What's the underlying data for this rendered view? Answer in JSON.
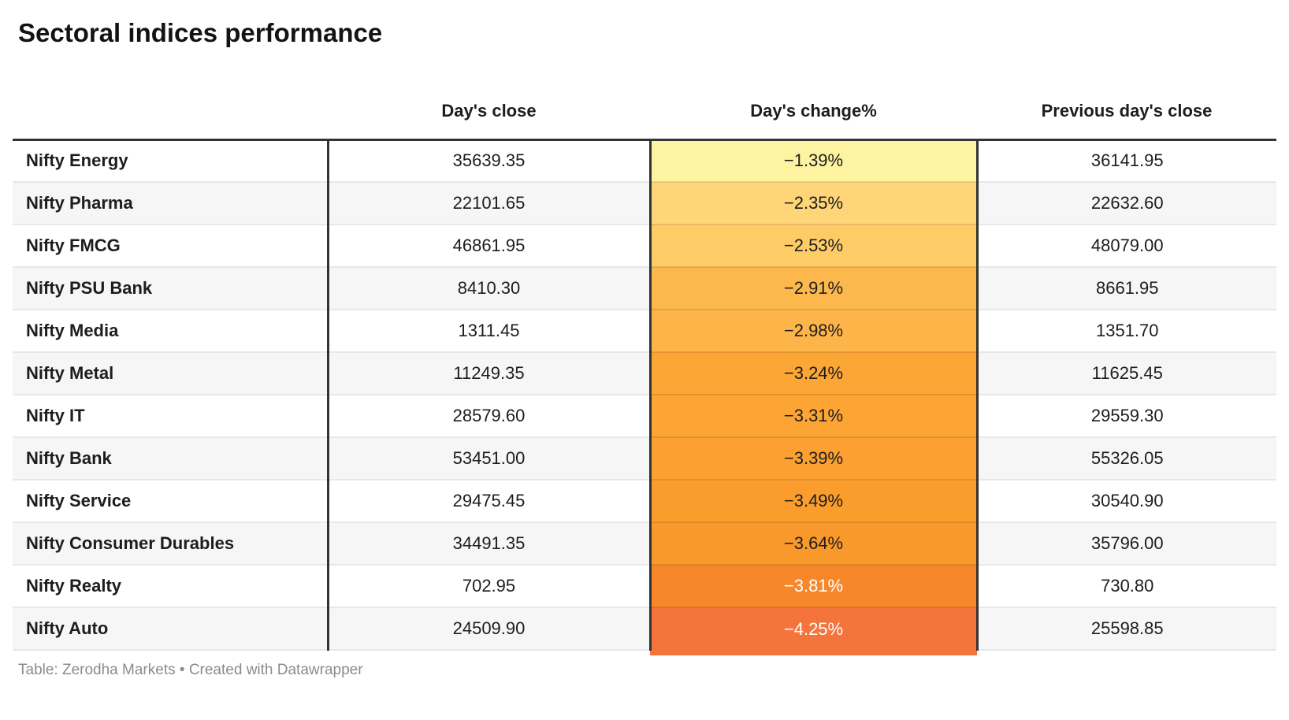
{
  "title": "Sectoral indices performance",
  "table": {
    "columns": [
      "",
      "Day's close",
      "Day's change%",
      "Previous day's close"
    ],
    "rows": [
      {
        "label": "Nifty Energy",
        "close": "35639.35",
        "change": "−1.39%",
        "prev": "36141.95",
        "change_bg": "#fdf3a1",
        "change_fg": "#1d1d1d"
      },
      {
        "label": "Nifty Pharma",
        "close": "22101.65",
        "change": "−2.35%",
        "prev": "22632.60",
        "change_bg": "#fed578",
        "change_fg": "#1d1d1d"
      },
      {
        "label": "Nifty FMCG",
        "close": "46861.95",
        "change": "−2.53%",
        "prev": "48079.00",
        "change_bg": "#fecc67",
        "change_fg": "#1d1d1d"
      },
      {
        "label": "Nifty PSU Bank",
        "close": "8410.30",
        "change": "−2.91%",
        "prev": "8661.95",
        "change_bg": "#fdb84d",
        "change_fg": "#1d1d1d"
      },
      {
        "label": "Nifty Media",
        "close": "1311.45",
        "change": "−2.98%",
        "prev": "1351.70",
        "change_bg": "#fdb449",
        "change_fg": "#1d1d1d"
      },
      {
        "label": "Nifty Metal",
        "close": "11249.35",
        "change": "−3.24%",
        "prev": "11625.45",
        "change_bg": "#fca636",
        "change_fg": "#1d1d1d"
      },
      {
        "label": "Nifty IT",
        "close": "28579.60",
        "change": "−3.31%",
        "prev": "29559.30",
        "change_bg": "#fca434",
        "change_fg": "#1d1d1d"
      },
      {
        "label": "Nifty Bank",
        "close": "53451.00",
        "change": "−3.39%",
        "prev": "55326.05",
        "change_bg": "#fca031",
        "change_fg": "#1d1d1d"
      },
      {
        "label": "Nifty Service",
        "close": "29475.45",
        "change": "−3.49%",
        "prev": "30540.90",
        "change_bg": "#fb9d2d",
        "change_fg": "#1d1d1d"
      },
      {
        "label": "Nifty Consumer Durables",
        "close": "34491.35",
        "change": "−3.64%",
        "prev": "35796.00",
        "change_bg": "#fa992b",
        "change_fg": "#1d1d1d"
      },
      {
        "label": "Nifty Realty",
        "close": "702.95",
        "change": "−3.81%",
        "prev": "730.80",
        "change_bg": "#f8872c",
        "change_fg": "#ffffff"
      },
      {
        "label": "Nifty Auto",
        "close": "24509.90",
        "change": "−4.25%",
        "prev": "25598.85",
        "change_bg": "#f5743c",
        "change_fg": "#ffffff"
      }
    ]
  },
  "footer": {
    "prefix": "Table: ",
    "source": "Zerodha Markets",
    "separator": " • Created with ",
    "brand": "Datawrapper"
  },
  "colors": {
    "heading_text": "#131313",
    "body_text": "#1d1d1d",
    "strong_border": "#333333",
    "row_divider": "#e8e8e8",
    "zebra_row_bg": "#f6f6f6",
    "footer_text": "#8b8b8b",
    "heatmap_min": "#fdf3a1",
    "heatmap_max": "#f5743c"
  },
  "chart_data": {
    "type": "table",
    "title": "Sectoral indices performance",
    "columns": [
      "",
      "Day's close",
      "Day's change%",
      "Previous day's close"
    ],
    "rows": [
      [
        "Nifty Energy",
        35639.35,
        -1.39,
        36141.95
      ],
      [
        "Nifty Pharma",
        22101.65,
        -2.35,
        22632.6
      ],
      [
        "Nifty FMCG",
        46861.95,
        -2.53,
        48079.0
      ],
      [
        "Nifty PSU Bank",
        8410.3,
        -2.91,
        8661.95
      ],
      [
        "Nifty Media",
        1311.45,
        -2.98,
        1351.7
      ],
      [
        "Nifty Metal",
        11249.35,
        -3.24,
        11625.45
      ],
      [
        "Nifty IT",
        28579.6,
        -3.31,
        29559.3
      ],
      [
        "Nifty Bank",
        53451.0,
        -3.39,
        55326.05
      ],
      [
        "Nifty Service",
        29475.45,
        -3.49,
        30540.9
      ],
      [
        "Nifty Consumer Durables",
        34491.35,
        -3.64,
        35796.0
      ],
      [
        "Nifty Realty",
        702.95,
        -3.81,
        730.8
      ],
      [
        "Nifty Auto",
        24509.9,
        -4.25,
        25598.85
      ]
    ],
    "heatmap_column": "Day's change%",
    "heatmap_scale": [
      "#fdf3a1",
      "#f5743c"
    ],
    "footer": "Table: Zerodha Markets • Created with Datawrapper"
  }
}
